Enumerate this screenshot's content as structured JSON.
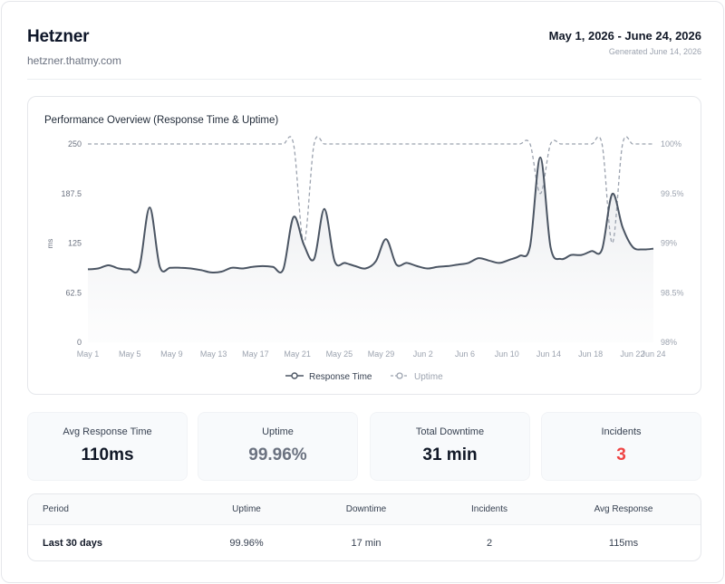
{
  "header": {
    "brand": "Hetzner",
    "host": "hetzner.thatmy.com",
    "date_range": "May 1, 2026 - June 24, 2026",
    "generated": "Generated June 14, 2026"
  },
  "chart_card": {
    "title": "Performance Overview (Response Time & Uptime)"
  },
  "chart_data": {
    "type": "line",
    "title": "Performance Overview (Response Time & Uptime)",
    "ylabel": "ms",
    "ylim": [
      0,
      250
    ],
    "y_ticks": [
      "0",
      "62.5",
      "125",
      "187.5",
      "250"
    ],
    "y2lim": [
      98,
      100
    ],
    "y2_ticks": [
      "98%",
      "98.5%",
      "99%",
      "99.5%",
      "100%"
    ],
    "x_ticks": [
      "May 1",
      "May 5",
      "May 9",
      "May 13",
      "May 17",
      "May 21",
      "May 25",
      "May 29",
      "Jun 2",
      "Jun 6",
      "Jun 10",
      "Jun 14",
      "Jun 18",
      "Jun 22",
      "Jun 24"
    ],
    "x_start": "2026-05-01",
    "x_end": "2026-06-24",
    "legend_position": "bottom",
    "series": [
      {
        "name": "Response Time",
        "axis": "left",
        "color": "#4b5563",
        "style": "solid",
        "values": [
          92,
          93,
          97,
          93,
          92,
          94,
          170,
          95,
          94,
          94,
          93,
          91,
          88,
          89,
          94,
          93,
          95,
          96,
          95,
          92,
          158,
          123,
          105,
          168,
          102,
          100,
          96,
          93,
          102,
          130,
          98,
          100,
          96,
          93,
          95,
          96,
          98,
          100,
          106,
          103,
          100,
          104,
          109,
          121,
          233,
          120,
          105,
          110,
          110,
          115,
          117,
          187,
          145,
          120,
          117,
          118
        ]
      },
      {
        "name": "Uptime",
        "axis": "right",
        "color": "#9ca3af",
        "style": "dashed",
        "values": [
          100,
          100,
          100,
          100,
          100,
          100,
          100,
          100,
          100,
          100,
          100,
          100,
          100,
          100,
          100,
          100,
          100,
          100,
          100,
          100,
          100,
          99.0,
          100,
          100,
          100,
          100,
          100,
          100,
          100,
          100,
          100,
          100,
          100,
          100,
          100,
          100,
          100,
          100,
          100,
          100,
          100,
          100,
          100,
          100,
          99.5,
          100,
          100,
          100,
          100,
          100,
          100,
          99.0,
          100,
          100,
          100,
          100
        ]
      }
    ]
  },
  "stats": [
    {
      "label": "Avg Response Time",
      "value": "110ms"
    },
    {
      "label": "Uptime",
      "value": "99.96%"
    },
    {
      "label": "Total Downtime",
      "value": "31 min"
    },
    {
      "label": "Incidents",
      "value": "3"
    }
  ],
  "table": {
    "headers": [
      "Period",
      "Uptime",
      "Downtime",
      "Incidents",
      "Avg Response"
    ],
    "rows": [
      [
        "Last 30 days",
        "99.96%",
        "17 min",
        "2",
        "115ms"
      ]
    ]
  },
  "colors": {
    "accent_red": "#ef4444",
    "line": "#4b5563",
    "uptime": "#9ca3af"
  }
}
